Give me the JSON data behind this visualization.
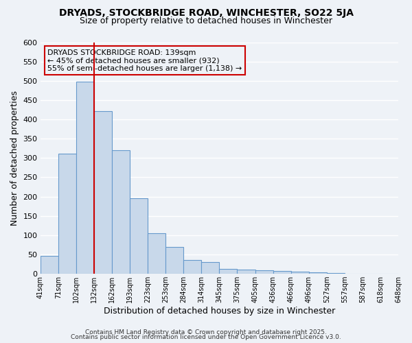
{
  "title": "DRYADS, STOCKBRIDGE ROAD, WINCHESTER, SO22 5JA",
  "subtitle": "Size of property relative to detached houses in Winchester",
  "xlabel": "Distribution of detached houses by size in Winchester",
  "ylabel": "Number of detached properties",
  "bar_values": [
    47,
    312,
    497,
    422,
    320,
    195,
    106,
    70,
    35,
    30,
    13,
    11,
    10,
    8,
    5,
    3,
    2,
    1,
    1,
    1
  ],
  "bin_labels": [
    "41sqm",
    "71sqm",
    "102sqm",
    "132sqm",
    "162sqm",
    "193sqm",
    "223sqm",
    "253sqm",
    "284sqm",
    "314sqm",
    "345sqm",
    "375sqm",
    "405sqm",
    "436sqm",
    "466sqm",
    "496sqm",
    "527sqm",
    "557sqm",
    "587sqm",
    "618sqm",
    "648sqm"
  ],
  "bar_color": "#c8d8ea",
  "bar_edge_color": "#6699cc",
  "vline_x": 3,
  "vline_color": "#cc0000",
  "ylim": [
    0,
    600
  ],
  "yticks": [
    0,
    50,
    100,
    150,
    200,
    250,
    300,
    350,
    400,
    450,
    500,
    550,
    600
  ],
  "annotation_title": "DRYADS STOCKBRIDGE ROAD: 139sqm",
  "annotation_line1": "← 45% of detached houses are smaller (932)",
  "annotation_line2": "55% of semi-detached houses are larger (1,138) →",
  "annotation_box_color": "#cc0000",
  "footer_line1": "Contains HM Land Registry data © Crown copyright and database right 2025.",
  "footer_line2": "Contains public sector information licensed under the Open Government Licence v3.0.",
  "background_color": "#eef2f7",
  "grid_color": "#ffffff"
}
